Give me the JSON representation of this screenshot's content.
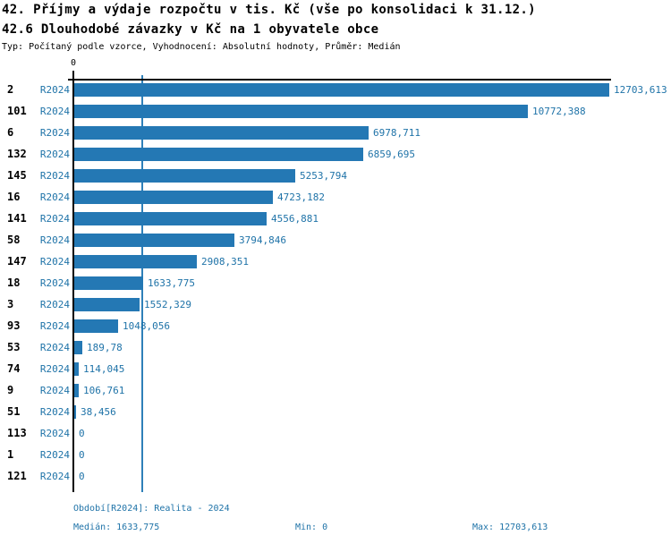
{
  "header": {
    "title": "42. Příjmy a výdaje rozpočtu v tis. Kč (vše po konsolidaci k 31.12.)",
    "subtitle": "42.6 Dlouhodobé závazky v Kč na 1 obyvatele obce",
    "meta": "Typ: Počítaný podle vzorce, Vyhodnocení: Absolutní hodnoty, Průměr: Medián"
  },
  "axis": {
    "zero_label": "0"
  },
  "colors": {
    "bar": "#2478b4",
    "blue_text": "#1f73a8",
    "median_line": "#2e80b9",
    "axis": "#000000"
  },
  "footer": {
    "period": "Období[R2024]: Realita - 2024",
    "median": "Medián: 1633,775",
    "min": "Min: 0",
    "max": "Max: 12703,613"
  },
  "chart_data": {
    "type": "bar",
    "orientation": "horizontal",
    "title": "42.6 Dlouhodobé závazky v Kč na 1 obyvatele obce",
    "xlabel": "",
    "ylabel": "",
    "grid": false,
    "xlim": [
      0,
      12703.613
    ],
    "categories": [
      "2",
      "101",
      "6",
      "132",
      "145",
      "16",
      "141",
      "58",
      "147",
      "18",
      "3",
      "93",
      "53",
      "74",
      "9",
      "51",
      "113",
      "1",
      "121"
    ],
    "series": [
      {
        "name": "R2024",
        "values": [
          12703.613,
          10772.388,
          6978.711,
          6859.695,
          5253.794,
          4723.182,
          4556.881,
          3794.846,
          2908.351,
          1633.775,
          1552.329,
          1048.056,
          189.78,
          114.045,
          106.761,
          38.456,
          0,
          0,
          0
        ],
        "value_labels": [
          "12703,613",
          "10772,388",
          "6978,711",
          "6859,695",
          "5253,794",
          "4723,182",
          "4556,881",
          "3794,846",
          "2908,351",
          "1633,775",
          "1552,329",
          "1048,056",
          "189,78",
          "114,045",
          "106,761",
          "38,456",
          "0",
          "0",
          "0"
        ]
      }
    ],
    "median": 1633.775,
    "min": 0,
    "max": 12703.613,
    "median_line": true
  }
}
